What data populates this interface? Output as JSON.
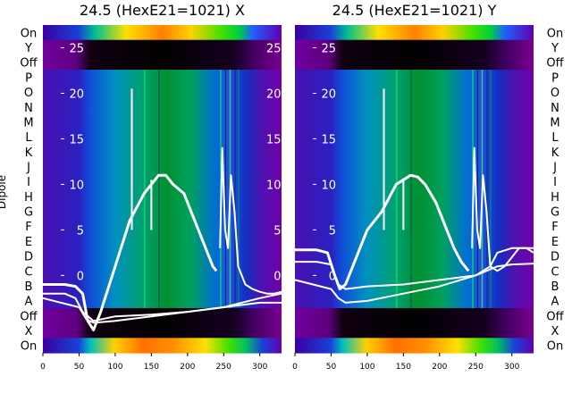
{
  "chart_data": [
    {
      "type": "heatmap",
      "title": "24.5 (HexE21=1021) X",
      "ylabel": "Dipole",
      "xlim": [
        0,
        330
      ],
      "ylim": [
        -8.5,
        27.5
      ],
      "x_ticks": [
        0,
        50,
        100,
        150,
        200,
        250,
        300
      ],
      "y_ticks": [
        0,
        5,
        10,
        15,
        20,
        25
      ],
      "left_row_labels": [
        "On",
        "Y",
        "Off",
        "P",
        "O",
        "N",
        "M",
        "L",
        "K",
        "J",
        "I",
        "H",
        "G",
        "F",
        "E",
        "D",
        "C",
        "B",
        "A",
        "Off",
        "X",
        "On"
      ],
      "series": [
        {
          "name": "",
          "x": [
            0,
            30,
            45,
            55,
            62,
            70,
            80,
            100,
            120,
            140,
            150,
            160,
            170,
            180,
            195,
            210,
            220,
            230,
            235,
            240
          ],
          "y": [
            -1,
            -1,
            -1.2,
            -2,
            -5,
            -6,
            -4,
            1,
            6,
            9,
            10,
            11,
            11,
            10,
            9,
            6,
            4,
            2,
            1,
            0.5
          ]
        },
        {
          "name": "",
          "x": [
            245,
            248,
            252,
            256,
            260,
            265,
            270,
            280,
            290,
            300,
            310,
            320,
            330
          ],
          "y": [
            3,
            14,
            5,
            3,
            11,
            7,
            1,
            -1,
            -1.5,
            -1.8,
            -2,
            -2,
            -1.8
          ]
        },
        {
          "name": "",
          "x": [
            0,
            30,
            45,
            55,
            70,
            100,
            150,
            200,
            250,
            300,
            330
          ],
          "y": [
            -2,
            -2,
            -2.5,
            -4,
            -5,
            -4.5,
            -4.3,
            -4,
            -3.5,
            -2.5,
            -2
          ]
        },
        {
          "name": "",
          "x": [
            0,
            50,
            60,
            70,
            100,
            150,
            200,
            250,
            300,
            330
          ],
          "y": [
            -2.5,
            -3.5,
            -4.8,
            -5.2,
            -5,
            -4.5,
            -4,
            -3.5,
            -3,
            -3
          ]
        }
      ]
    },
    {
      "type": "heatmap",
      "title": "24.5 (HexE21=1021) Y",
      "ylabel": "",
      "xlim": [
        0,
        330
      ],
      "ylim": [
        -8.5,
        27.5
      ],
      "x_ticks": [
        0,
        50,
        100,
        150,
        200,
        250,
        300
      ],
      "y_ticks": [
        0,
        5,
        10,
        15,
        20,
        25
      ],
      "right_row_labels": [
        "On",
        "Y",
        "Off",
        "P",
        "O",
        "N",
        "M",
        "L",
        "K",
        "J",
        "I",
        "H",
        "G",
        "F",
        "E",
        "D",
        "C",
        "B",
        "A",
        "Off",
        "X",
        "On"
      ],
      "series": [
        {
          "name": "",
          "x": [
            0,
            30,
            45,
            55,
            62,
            70,
            80,
            100,
            120,
            140,
            150,
            160,
            170,
            180,
            195,
            210,
            220,
            230,
            235,
            240
          ],
          "y": [
            2.8,
            2.8,
            2.5,
            0,
            -1.5,
            -1,
            1,
            5,
            7,
            10,
            10.5,
            11,
            10.8,
            10,
            8,
            5,
            3,
            1.5,
            1,
            0.5
          ]
        },
        {
          "name": "",
          "x": [
            245,
            248,
            252,
            256,
            260,
            265,
            270,
            280,
            290,
            300,
            310,
            320,
            330
          ],
          "y": [
            3,
            14,
            5,
            3,
            11,
            7,
            1,
            0.5,
            1,
            2,
            3,
            3,
            2.5
          ]
        },
        {
          "name": "",
          "x": [
            0,
            30,
            50,
            60,
            70,
            100,
            150,
            200,
            250,
            270,
            280,
            300,
            330
          ],
          "y": [
            1.5,
            1.5,
            1.2,
            -1,
            -1.5,
            -1.2,
            -1,
            -0.5,
            0,
            1,
            2.5,
            3,
            3
          ]
        },
        {
          "name": "",
          "x": [
            0,
            50,
            60,
            70,
            100,
            150,
            200,
            250,
            280,
            300,
            330
          ],
          "y": [
            -0.5,
            -1.5,
            -2.5,
            -3,
            -2.8,
            -2,
            -1.2,
            0,
            1,
            1.2,
            1.3
          ]
        }
      ]
    }
  ]
}
